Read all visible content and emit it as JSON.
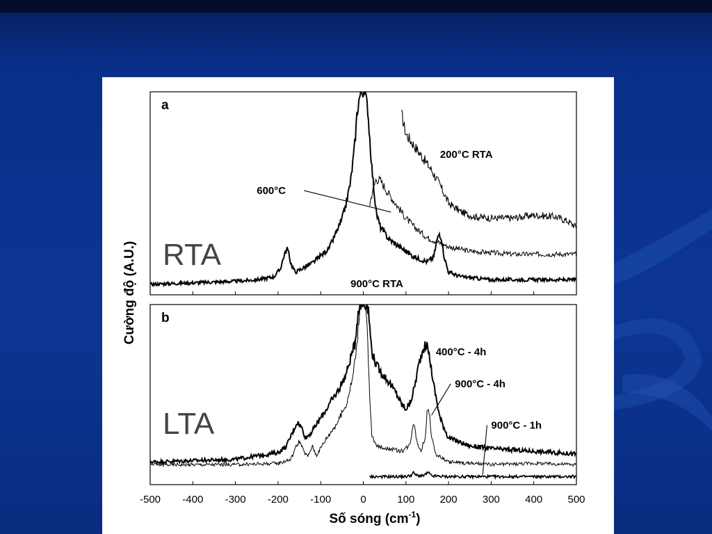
{
  "colors": {
    "background": "#0c3592",
    "figure_background": "#ffffff",
    "trace": "#000000",
    "overlay_label": "#444444"
  },
  "chart_data": {
    "type": "line",
    "ylabel": "Cường độ (A.U.)",
    "xlabel": "Số sóng (cm",
    "xlabel_superscript": "-1",
    "xlabel_suffix": ")",
    "xlim": [
      -500,
      500
    ],
    "xticks": [
      -500,
      -400,
      -300,
      -200,
      -100,
      0,
      100,
      200,
      300,
      400,
      500
    ],
    "grid": false,
    "panels": [
      {
        "panel_label": "a",
        "overlay_label": "RTA",
        "series": [
          {
            "name": "200°C RTA",
            "x": [
              90,
              100,
              130,
              160,
              180,
              200,
              230,
              260,
              300,
              350,
              400,
              450,
              480,
              500
            ],
            "y": [
              1.15,
              1.02,
              0.9,
              0.78,
              0.68,
              0.56,
              0.5,
              0.47,
              0.46,
              0.46,
              0.48,
              0.47,
              0.44,
              0.4
            ]
          },
          {
            "name": "600°C",
            "x": [
              15,
              20,
              30,
              40,
              60,
              80,
              100,
              120,
              150,
              200,
              250,
              300,
              350,
              400,
              450,
              500
            ],
            "y": [
              0.55,
              0.62,
              0.72,
              0.71,
              0.62,
              0.54,
              0.46,
              0.4,
              0.33,
              0.27,
              0.24,
              0.23,
              0.22,
              0.22,
              0.22,
              0.22
            ]
          },
          {
            "name": "900°C RTA",
            "x": [
              -500,
              -400,
              -300,
              -250,
              -210,
              -195,
              -185,
              -178,
              -170,
              -160,
              -120,
              -80,
              -50,
              -40,
              -30,
              -25,
              -20,
              -15,
              -10,
              -5,
              0,
              5,
              10,
              15,
              20,
              25,
              30,
              40,
              60,
              80,
              100,
              120,
              150,
              165,
              172,
              178,
              183,
              190,
              200,
              230,
              300,
              400,
              500
            ],
            "y": [
              0.02,
              0.03,
              0.04,
              0.05,
              0.07,
              0.12,
              0.22,
              0.26,
              0.16,
              0.1,
              0.16,
              0.26,
              0.45,
              0.56,
              0.7,
              0.82,
              0.95,
              1.15,
              1.25,
              1.3,
              1.3,
              1.28,
              1.2,
              1.0,
              0.8,
              0.65,
              0.5,
              0.4,
              0.32,
              0.28,
              0.24,
              0.2,
              0.17,
              0.2,
              0.3,
              0.36,
              0.33,
              0.2,
              0.1,
              0.07,
              0.05,
              0.05,
              0.05
            ]
          }
        ],
        "annotations": [
          {
            "text": "200°C RTA",
            "x": 180,
            "y": 0.86
          },
          {
            "text": "600°C",
            "x": -250,
            "y": 0.62,
            "arrow_to_x": 65,
            "arrow_to_y": 0.5
          },
          {
            "text": "900°C RTA",
            "x": -30,
            "y": 0.0
          }
        ]
      },
      {
        "panel_label": "b",
        "overlay_label": "LTA",
        "series": [
          {
            "name": "400°C - 4h",
            "x": [
              -500,
              -300,
              -200,
              -180,
              -165,
              -155,
              -145,
              -135,
              -120,
              -100,
              -80,
              -60,
              -40,
              -30,
              -20,
              -12,
              -8,
              8,
              12,
              20,
              30,
              40,
              60,
              80,
              90,
              100,
              110,
              120,
              130,
              140,
              148,
              155,
              165,
              180,
              200,
              250,
              300,
              400,
              500
            ],
            "y": [
              0.12,
              0.14,
              0.19,
              0.24,
              0.35,
              0.42,
              0.38,
              0.3,
              0.35,
              0.45,
              0.55,
              0.65,
              0.78,
              0.9,
              1.0,
              1.25,
              1.3,
              1.3,
              1.25,
              0.95,
              0.85,
              0.8,
              0.72,
              0.62,
              0.55,
              0.52,
              0.56,
              0.68,
              0.85,
              0.97,
              1.0,
              0.92,
              0.7,
              0.45,
              0.3,
              0.24,
              0.22,
              0.2,
              0.18
            ]
          },
          {
            "name": "900°C - 4h",
            "x": [
              -500,
              -300,
              -200,
              -170,
              -160,
              -150,
              -140,
              -130,
              -120,
              -110,
              -90,
              -60,
              -40,
              -25,
              -15,
              -8,
              -4,
              4,
              8,
              15,
              20,
              30,
              60,
              90,
              110,
              115,
              120,
              125,
              135,
              145,
              150,
              155,
              160,
              170,
              200,
              300,
              400,
              500
            ],
            "y": [
              0.1,
              0.1,
              0.11,
              0.14,
              0.22,
              0.28,
              0.2,
              0.16,
              0.24,
              0.17,
              0.28,
              0.42,
              0.55,
              0.75,
              1.0,
              1.28,
              1.3,
              1.3,
              1.2,
              0.6,
              0.32,
              0.24,
              0.22,
              0.2,
              0.25,
              0.38,
              0.42,
              0.28,
              0.2,
              0.3,
              0.5,
              0.5,
              0.3,
              0.18,
              0.12,
              0.1,
              0.11,
              0.1
            ]
          },
          {
            "name": "900°C - 1h",
            "x": [
              15,
              100,
              112,
              118,
              124,
              140,
              147,
              153,
              160,
              200,
              300,
              400,
              500
            ],
            "y": [
              0.01,
              0.01,
              0.02,
              0.04,
              0.02,
              0.015,
              0.03,
              0.04,
              0.015,
              0.01,
              0.01,
              0.01,
              0.01
            ]
          }
        ],
        "annotations": [
          {
            "text": "400°C - 4h",
            "x": 170,
            "y": 0.92
          },
          {
            "text": "900°C - 4h",
            "x": 215,
            "y": 0.68,
            "arrow_to_x": 160,
            "arrow_to_y": 0.47
          },
          {
            "text": "900°C - 1h",
            "x": 300,
            "y": 0.37,
            "arrow_to_x": 280,
            "arrow_to_y": 0.02
          }
        ]
      }
    ]
  }
}
